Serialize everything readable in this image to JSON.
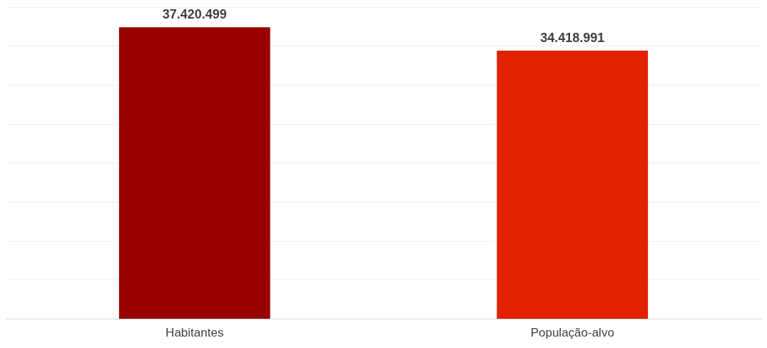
{
  "chart_data": {
    "type": "bar",
    "categories": [
      "Habitantes",
      "População-alvo"
    ],
    "values": [
      37420499,
      34418991
    ],
    "colors": [
      "#990000",
      "#e02200"
    ],
    "value_labels": [
      "37.420.499",
      "34.418.991"
    ],
    "ylim": [
      0,
      40000000
    ],
    "yticks": [
      {
        "value": 0,
        "label": null
      },
      {
        "value": 5000000,
        "label": null
      },
      {
        "value": 10000000,
        "label": null
      },
      {
        "value": 15000000,
        "label": null
      },
      {
        "value": 20000000,
        "label": null
      },
      {
        "value": 25000000,
        "label": null
      },
      {
        "value": 30000000,
        "label": null
      },
      {
        "value": 35000000,
        "label": null
      },
      {
        "value": 40000000,
        "label": null
      }
    ],
    "grid": "y",
    "tick_labels": "x"
  }
}
